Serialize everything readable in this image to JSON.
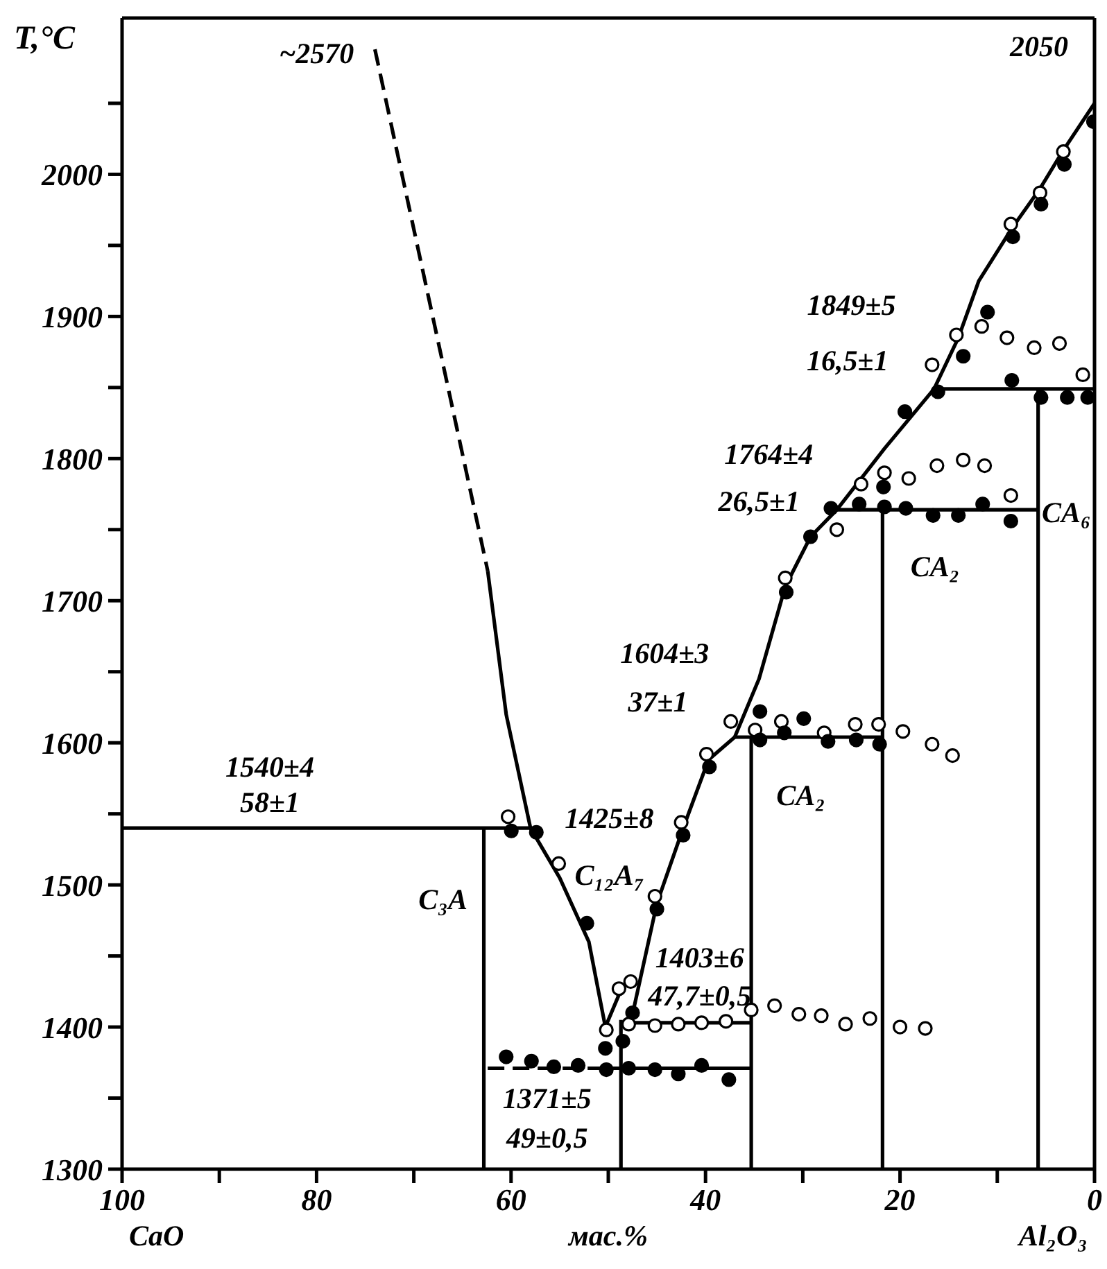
{
  "chart_data": {
    "type": "line",
    "ylabel": "T,°C",
    "xlabel": "мас.%",
    "xlim": [
      100,
      0
    ],
    "ylim": [
      1300,
      2110
    ],
    "xticks": [
      100,
      {
        "value": 90,
        "label": null
      },
      80,
      {
        "value": 70,
        "label": null
      },
      60,
      {
        "value": 50,
        "label": null
      },
      40,
      {
        "value": 30,
        "label": null
      },
      20,
      {
        "value": 10,
        "label": null
      },
      0
    ],
    "yticks": [
      1300,
      {
        "value": 1350,
        "label": null
      },
      1400,
      {
        "value": 1450,
        "label": null
      },
      1500,
      {
        "value": 1550,
        "label": null
      },
      1600,
      {
        "value": 1650,
        "label": null
      },
      1700,
      {
        "value": 1750,
        "label": null
      },
      1800,
      {
        "value": 1850,
        "label": null
      },
      1900,
      {
        "value": 1950,
        "label": null
      },
      2000,
      {
        "value": 2050,
        "label": null
      }
    ],
    "series": [
      {
        "type": "line",
        "color": "#000000",
        "line_style": "dashed",
        "x": [
          74,
          62.4
        ],
        "values": [
          2088,
          1721
        ]
      },
      {
        "type": "line",
        "color": "#000000",
        "line_style": "solid",
        "x": [
          62.4,
          60.5,
          58
        ],
        "values": [
          1721,
          1620,
          1540
        ]
      },
      {
        "type": "line",
        "color": "#000000",
        "line_style": "solid",
        "x": [
          58,
          55,
          52,
          50.3
        ],
        "values": [
          1540,
          1505,
          1460,
          1400
        ]
      },
      {
        "type": "line",
        "color": "#000000",
        "line_style": "solid",
        "x": [
          50.3,
          48.7
        ],
        "values": [
          1400,
          1426
        ]
      },
      {
        "type": "line",
        "color": "#000000",
        "line_style": "solid",
        "x": [
          47.7,
          45,
          42.3,
          39.7,
          37
        ],
        "values": [
          1403,
          1487,
          1540,
          1588,
          1604
        ]
      },
      {
        "type": "line",
        "color": "#000000",
        "line_style": "solid",
        "x": [
          37,
          34.5,
          31.8,
          29.2,
          26.5,
          21.6,
          16.5
        ],
        "values": [
          1604,
          1645,
          1710,
          1745,
          1764,
          1807,
          1849
        ]
      },
      {
        "type": "line",
        "color": "#000000",
        "line_style": "solid",
        "x": [
          16.5,
          14,
          11.9,
          8.5,
          5.6,
          3.2,
          0
        ],
        "values": [
          1849,
          1885,
          1925,
          1962,
          1990,
          2017,
          2050
        ]
      },
      {
        "type": "line",
        "color": "#000000",
        "line_style": "solid",
        "x": [
          100,
          58
        ],
        "values": [
          1540,
          1540
        ]
      },
      {
        "type": "line",
        "color": "#000000",
        "line_style": "dashed",
        "x": [
          62.4,
          48.7
        ],
        "values": [
          1371,
          1371
        ]
      },
      {
        "type": "line",
        "color": "#000000",
        "line_style": "solid",
        "x": [
          48.7,
          35.3
        ],
        "values": [
          1371,
          1371
        ]
      },
      {
        "type": "line",
        "color": "#000000",
        "line_style": "solid",
        "x": [
          47.7,
          35.3
        ],
        "values": [
          1403,
          1403
        ]
      },
      {
        "type": "line",
        "color": "#000000",
        "line_style": "solid",
        "x": [
          37,
          21.8
        ],
        "values": [
          1604,
          1604
        ]
      },
      {
        "type": "line",
        "color": "#000000",
        "line_style": "solid",
        "x": [
          26.5,
          5.8
        ],
        "values": [
          1764,
          1764
        ]
      },
      {
        "type": "line",
        "color": "#000000",
        "line_style": "solid",
        "x": [
          16.5,
          0
        ],
        "values": [
          1849,
          1849
        ]
      },
      {
        "type": "line",
        "color": "#000000",
        "line_style": "solid",
        "x": [
          62.8,
          62.8
        ],
        "values": [
          1300,
          1540
        ]
      },
      {
        "type": "line",
        "color": "#000000",
        "line_style": "solid",
        "x": [
          48.7,
          48.7
        ],
        "values": [
          1300,
          1405
        ]
      },
      {
        "type": "line",
        "color": "#000000",
        "line_style": "solid",
        "x": [
          35.3,
          35.3
        ],
        "values": [
          1300,
          1604
        ]
      },
      {
        "type": "line",
        "color": "#000000",
        "line_style": "solid",
        "x": [
          21.8,
          21.8
        ],
        "values": [
          1300,
          1764
        ]
      },
      {
        "type": "line",
        "color": "#000000",
        "line_style": "solid",
        "x": [
          5.8,
          5.8
        ],
        "values": [
          1300,
          1849
        ]
      },
      {
        "type": "scatter",
        "color": "#ffffff",
        "marker": "circle",
        "x": [
          60.3,
          55.1,
          48.9,
          47.7,
          50.2,
          47.9,
          45.2,
          42.8,
          40.4,
          37.9,
          35.3,
          32.9,
          30.4,
          28.1,
          25.6,
          23.1,
          20.0,
          17.4,
          45.2,
          42.5,
          39.9,
          37.4,
          34.9,
          32.2,
          27.8,
          24.6,
          22.2,
          19.7,
          16.7,
          14.6,
          31.8,
          26.5,
          24.0,
          21.6,
          19.1,
          16.2,
          13.5,
          11.3,
          8.6,
          16.7,
          14.2,
          11.6,
          9.0,
          6.2,
          3.6,
          1.2,
          8.6,
          5.6,
          3.2
        ],
        "values": [
          1548,
          1515,
          1427,
          1432,
          1398,
          1402,
          1401,
          1402,
          1403,
          1404,
          1412,
          1415,
          1409,
          1408,
          1402,
          1406,
          1400,
          1399,
          1492,
          1544,
          1592,
          1615,
          1609,
          1615,
          1607,
          1613,
          1613,
          1608,
          1599,
          1591,
          1716,
          1750,
          1782,
          1790,
          1786,
          1795,
          1799,
          1795,
          1774,
          1866,
          1887,
          1893,
          1885,
          1878,
          1881,
          1859,
          1965,
          1987,
          2016
        ]
      },
      {
        "type": "scatter",
        "color": "#000000",
        "marker": "circle",
        "x": [
          59.97,
          57.4,
          52.2,
          47.5,
          50.3,
          48.5,
          60.5,
          57.9,
          55.6,
          53.1,
          50.2,
          47.9,
          45.2,
          42.8,
          40.4,
          37.6,
          45.0,
          42.3,
          39.6,
          34.4,
          34.4,
          31.9,
          29.9,
          27.4,
          24.5,
          22.1,
          31.7,
          29.2,
          27.1,
          24.2,
          21.7,
          21.6,
          19.4,
          16.6,
          14.0,
          11.5,
          8.6,
          19.5,
          16.1,
          13.5,
          11.0,
          8.5,
          5.5,
          2.8,
          0.7,
          8.4,
          5.5,
          3.1,
          0.1
        ],
        "values": [
          1538,
          1537,
          1473,
          1410,
          1385,
          1390,
          1379,
          1376,
          1372,
          1373,
          1370,
          1371,
          1370,
          1367,
          1373,
          1363,
          1483,
          1535,
          1583,
          1622,
          1602,
          1607,
          1617,
          1601,
          1602,
          1599,
          1706,
          1745,
          1765,
          1768,
          1780,
          1766,
          1765,
          1760,
          1760,
          1768,
          1756,
          1833,
          1847,
          1872,
          1903,
          1855,
          1843,
          1843,
          1843,
          1956,
          1979,
          2007,
          2037
        ]
      }
    ],
    "annotations": [
      "CaO",
      "Al₂O₃",
      "~2570",
      "2050",
      "1849±5",
      "16,5±1",
      "1764±4",
      "26,5±1",
      "1604±3",
      "37±1",
      "1540±4",
      "58±1",
      "1425±8",
      "C₁₂A₇",
      "C₃A",
      "CA₂",
      "CA₂",
      "CA₆",
      "1403±6",
      "47,7±0,5",
      "1371±5",
      "49±0,5"
    ]
  }
}
